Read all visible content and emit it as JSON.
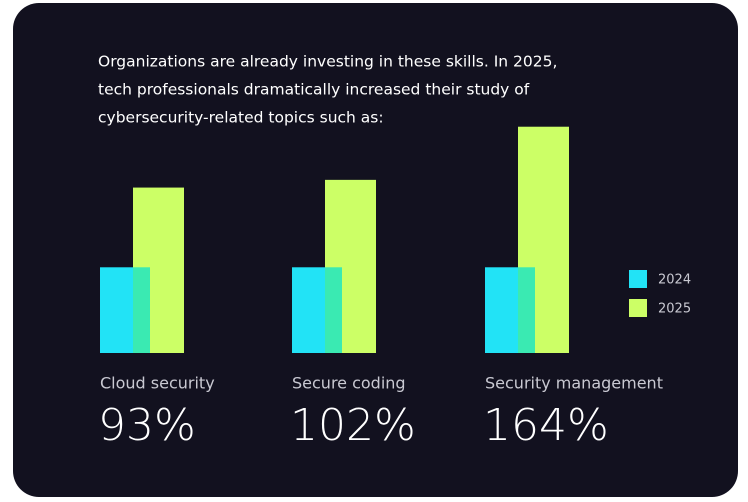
{
  "chart_data": {
    "type": "bar",
    "intro": [
      "Organizations are already investing in these skills. In 2025,",
      "tech professionals dramatically increased their study of",
      "cybersecurity-related topics such as:"
    ],
    "categories": [
      "Cloud security",
      "Secure coding",
      "Security management"
    ],
    "changes": [
      "93%",
      "102%",
      "164%"
    ],
    "series": [
      {
        "name": "2024",
        "color": "#22e3f6",
        "values": [
          100,
          100,
          100
        ]
      },
      {
        "name": "2025",
        "color": "#ccff66",
        "values": [
          193,
          202,
          264
        ]
      }
    ],
    "ylim": [
      0,
      280
    ]
  }
}
